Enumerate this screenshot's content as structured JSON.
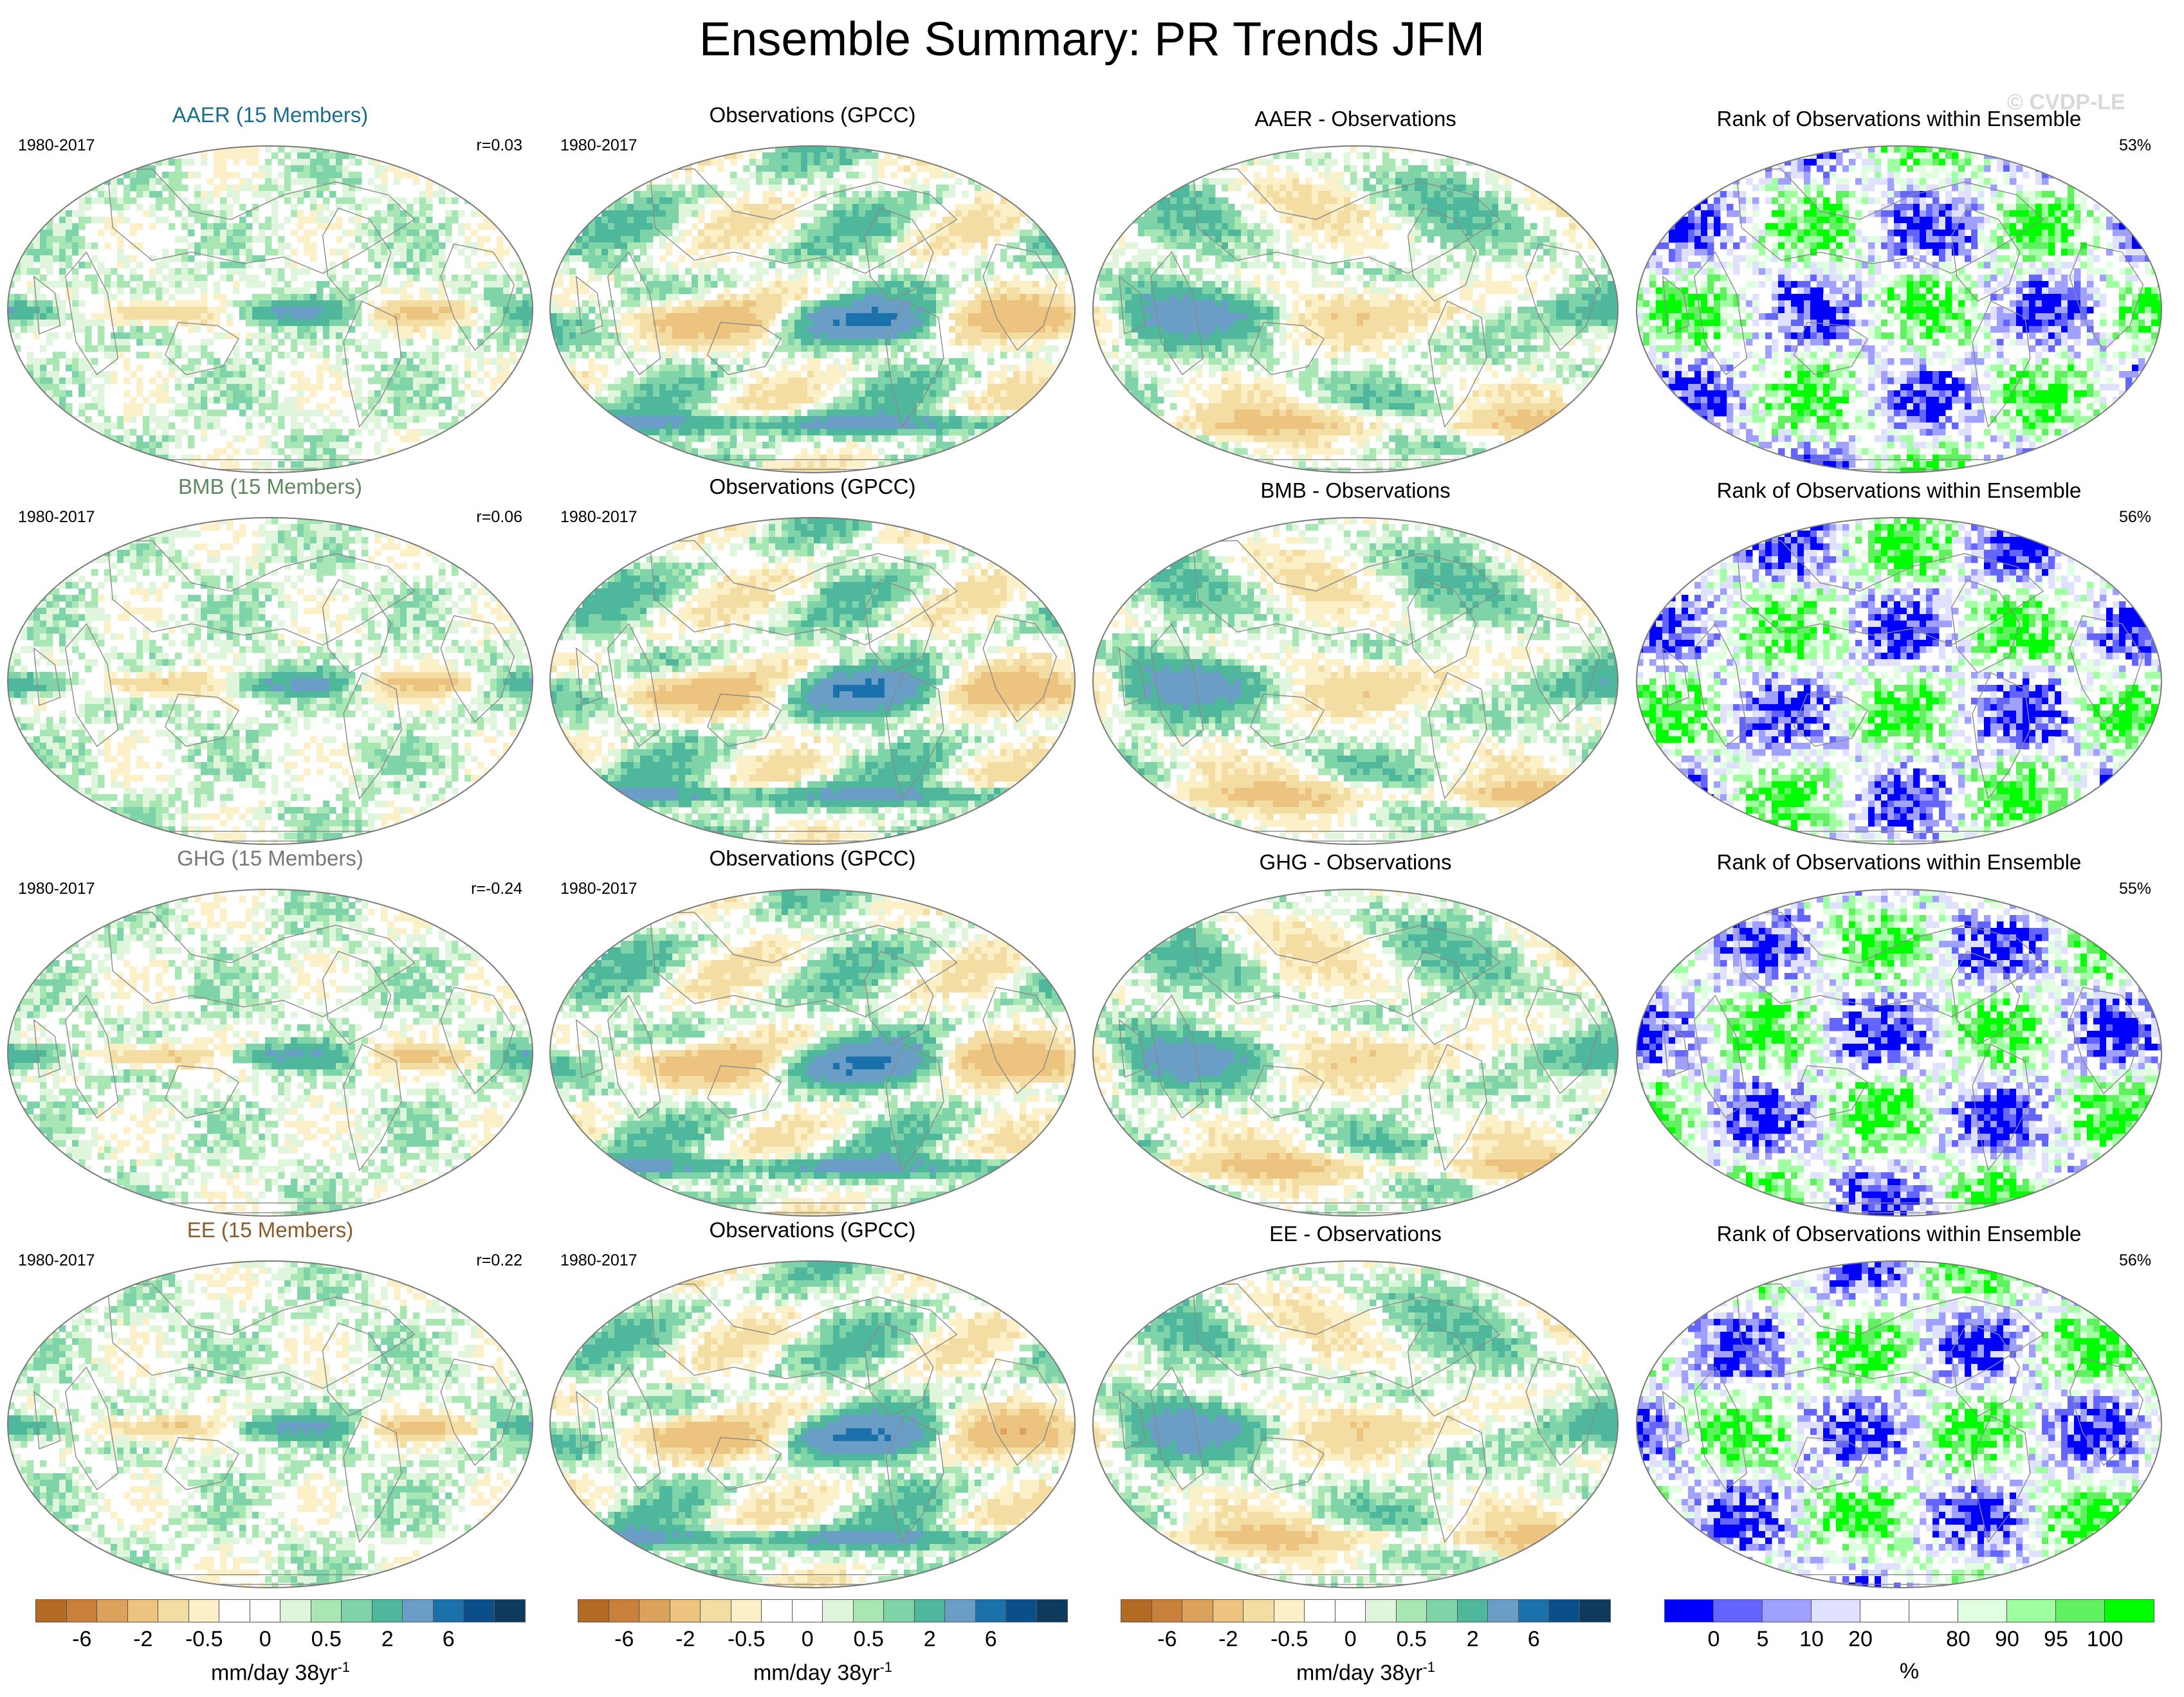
{
  "title": "Ensemble Summary: PR Trends JFM",
  "credit": "© CVDP-LE",
  "colors": {
    "pr_scale": [
      "#b36b24",
      "#c9803a",
      "#dca25c",
      "#ecc37f",
      "#f4dda3",
      "#fbf0c8",
      "#ffffff",
      "#ffffff",
      "#dff5dc",
      "#a8e6b4",
      "#7ed3a8",
      "#4fb79b",
      "#6a9ec7",
      "#1b71ac",
      "#0b4f8a",
      "#0e3a5e"
    ],
    "rank_scale": [
      "#0000ff",
      "#6464ff",
      "#a0a0ff",
      "#e0e0ff",
      "#ffffff",
      "#ffffff",
      "#e0ffe0",
      "#a0ffa0",
      "#60f060",
      "#00ff00"
    ],
    "group_titles": {
      "AAER": "#1c6e8c",
      "BMB": "#5f8a5f",
      "GHG": "#777777",
      "EE": "#8b5a2b"
    },
    "coastline": "#8a8a8a"
  },
  "rows": [
    {
      "key": "AAER",
      "ens_title": "AAER (15 Members)",
      "ens_period": "1980-2017",
      "ens_r": "r=0.03",
      "obs_title": "Observations (GPCC)",
      "obs_period": "1980-2017",
      "diff_title": "AAER - Observations",
      "rank_title": "Rank of Observations within Ensemble",
      "rank_pct": "53%"
    },
    {
      "key": "BMB",
      "ens_title": "BMB (15 Members)",
      "ens_period": "1980-2017",
      "ens_r": "r=0.06",
      "obs_title": "Observations (GPCC)",
      "obs_period": "1980-2017",
      "diff_title": "BMB - Observations",
      "rank_title": "Rank of Observations within Ensemble",
      "rank_pct": "56%"
    },
    {
      "key": "GHG",
      "ens_title": "GHG (15 Members)",
      "ens_period": "1980-2017",
      "ens_r": "r=-0.24",
      "obs_title": "Observations (GPCC)",
      "obs_period": "1980-2017",
      "diff_title": "GHG - Observations",
      "rank_title": "Rank of Observations within Ensemble",
      "rank_pct": "55%"
    },
    {
      "key": "EE",
      "ens_title": "EE (15 Members)",
      "ens_period": "1980-2017",
      "ens_r": "r=0.22",
      "obs_title": "Observations (GPCC)",
      "obs_period": "1980-2017",
      "diff_title": "EE - Observations",
      "rank_title": "Rank of Observations within Ensemble",
      "rank_pct": "56%"
    }
  ],
  "colorbars": {
    "pr": {
      "labels": [
        "-6",
        "-2",
        "-0.5",
        "0",
        "0.5",
        "2",
        "6"
      ],
      "unit": "mm/day 38yr",
      "unit_sup": "-1"
    },
    "rank": {
      "labels": [
        "0",
        "5",
        "10",
        "20",
        "80",
        "90",
        "95",
        "100"
      ],
      "unit": "%"
    }
  }
}
